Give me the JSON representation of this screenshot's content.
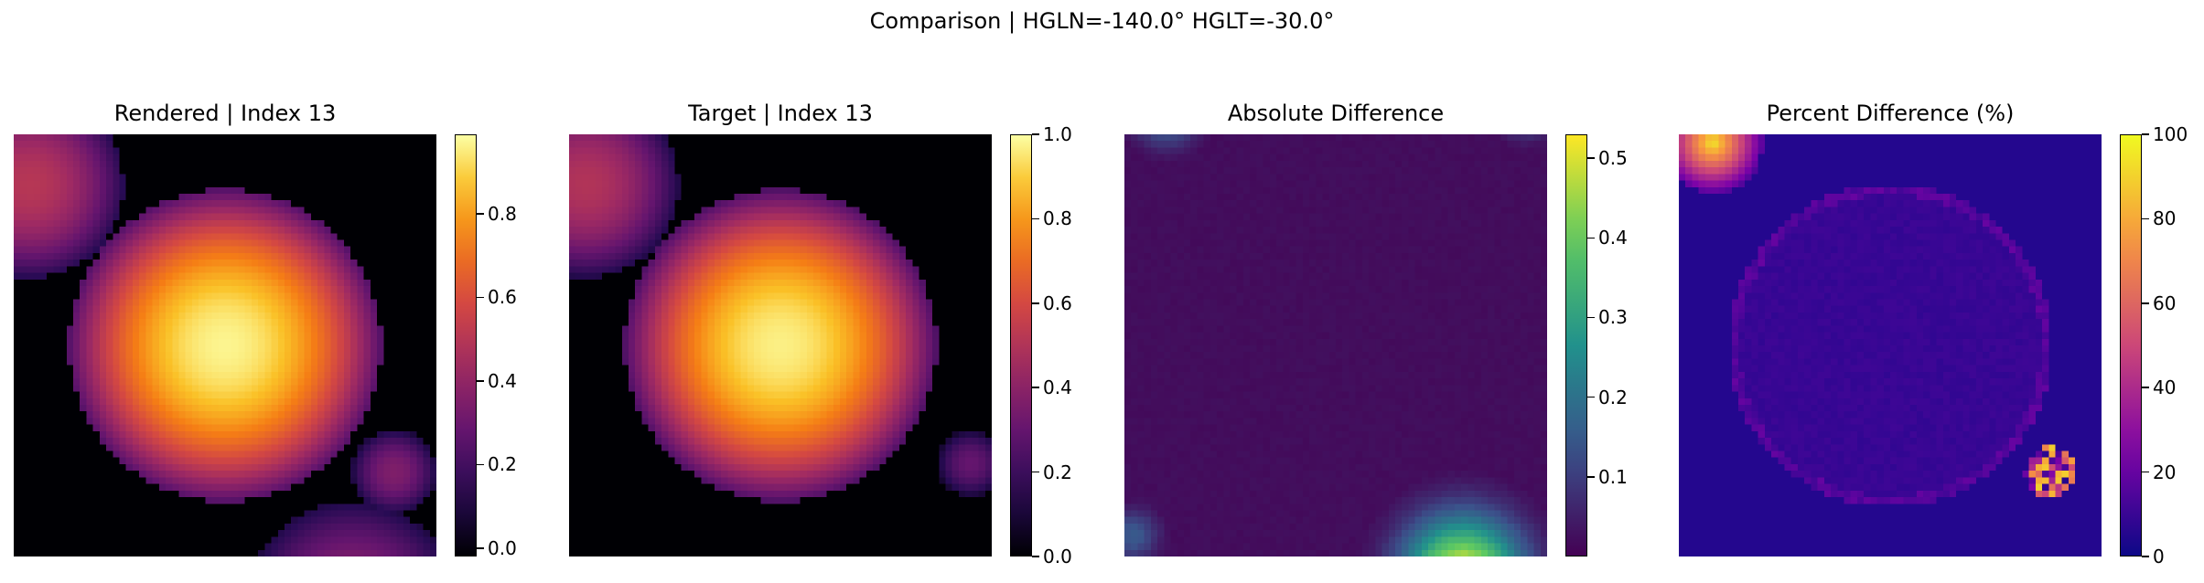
{
  "figure": {
    "suptitle": "Comparison | HGLN=-140.0° HGLT=-30.0°"
  },
  "chart_data": [
    {
      "type": "heatmap",
      "title": "Rendered | Index 13",
      "colormap": "inferno",
      "colorbar": {
        "ticks": [
          0.0,
          0.2,
          0.4,
          0.6,
          0.8
        ],
        "tick_labels": [
          "0.0",
          "0.2",
          "0.4",
          "0.6",
          "0.8"
        ],
        "range": [
          -0.02,
          0.99
        ]
      },
      "features": [
        {
          "shape": "disk",
          "cx": 0.5,
          "cy": 0.5,
          "r": 0.37,
          "peak": 0.97
        },
        {
          "shape": "disk",
          "cx": 0.04,
          "cy": 0.12,
          "r": 0.22,
          "peak": 0.5
        },
        {
          "shape": "disk",
          "cx": 0.9,
          "cy": 0.8,
          "r": 0.1,
          "peak": 0.35
        },
        {
          "shape": "disk",
          "cx": 0.8,
          "cy": 1.12,
          "r": 0.25,
          "peak": 0.4
        }
      ]
    },
    {
      "type": "heatmap",
      "title": "Target | Index 13",
      "colormap": "inferno",
      "colorbar": {
        "ticks": [
          0.0,
          0.2,
          0.4,
          0.6,
          0.8,
          1.0
        ],
        "tick_labels": [
          "0.0",
          "0.2",
          "0.4",
          "0.6",
          "0.8",
          "1.0"
        ],
        "range": [
          0.0,
          1.0
        ]
      },
      "features": [
        {
          "shape": "disk",
          "cx": 0.5,
          "cy": 0.5,
          "r": 0.37,
          "peak": 0.97
        },
        {
          "shape": "disk",
          "cx": 0.04,
          "cy": 0.12,
          "r": 0.22,
          "peak": 0.5
        },
        {
          "shape": "disk",
          "cx": 0.95,
          "cy": 0.78,
          "r": 0.08,
          "peak": 0.3
        }
      ]
    },
    {
      "type": "heatmap",
      "title": "Absolute Difference",
      "colormap": "viridis",
      "colorbar": {
        "ticks": [
          0.1,
          0.2,
          0.3,
          0.4,
          0.5
        ],
        "tick_labels": [
          "0.1",
          "0.2",
          "0.3",
          "0.4",
          "0.5"
        ],
        "range": [
          0.0,
          0.53
        ]
      },
      "features": [
        {
          "shape": "glow",
          "cx": 0.8,
          "cy": 1.05,
          "r": 0.18,
          "peak": 0.53
        },
        {
          "shape": "glow",
          "cx": 0.1,
          "cy": -0.05,
          "r": 0.1,
          "peak": 0.2
        },
        {
          "shape": "glow",
          "cx": 0.95,
          "cy": -0.05,
          "r": 0.08,
          "peak": 0.15
        },
        {
          "shape": "glow",
          "cx": 0.02,
          "cy": 0.95,
          "r": 0.08,
          "peak": 0.15
        }
      ]
    },
    {
      "type": "heatmap",
      "title": "Percent Difference (%)",
      "colormap": "plasma",
      "colorbar": {
        "ticks": [
          0,
          20,
          40,
          60,
          80,
          100
        ],
        "tick_labels": [
          "0",
          "20",
          "40",
          "60",
          "80",
          "100"
        ],
        "range": [
          0,
          100
        ]
      },
      "features": [
        {
          "shape": "ring",
          "cx": 0.5,
          "cy": 0.5,
          "r": 0.37,
          "peak": 20
        },
        {
          "shape": "corner",
          "cx": 0.08,
          "cy": 0.02,
          "r": 0.12,
          "peak": 100
        },
        {
          "shape": "spot",
          "cx": 0.88,
          "cy": 0.8,
          "r": 0.06,
          "peak": 90
        }
      ]
    }
  ]
}
